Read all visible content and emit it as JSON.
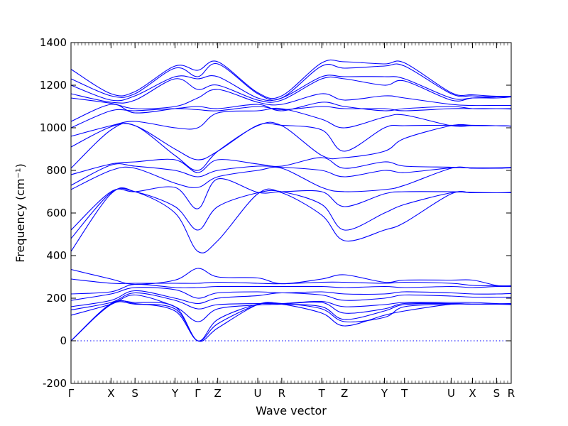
{
  "chart_data": {
    "type": "line",
    "title": "",
    "xlabel": "Wave vector",
    "ylabel": "Frequency (cm⁻¹)",
    "ylim": [
      -200,
      1400
    ],
    "yticks": [
      -200,
      0,
      200,
      400,
      600,
      800,
      1000,
      1200,
      1400
    ],
    "grid": false,
    "legend": "none",
    "zero_line": true,
    "line_color": "#0000ff",
    "xlim": [
      0,
      16.5
    ],
    "kpoints": [
      {
        "label": "Γ",
        "x": 0
      },
      {
        "label": "X",
        "x": 1.5
      },
      {
        "label": "S",
        "x": 2.4
      },
      {
        "label": "Y",
        "x": 3.9
      },
      {
        "label": "Γ",
        "x": 4.75
      },
      {
        "label": "Z",
        "x": 5.5
      },
      {
        "label": "U",
        "x": 7.0
      },
      {
        "label": "R",
        "x": 7.9
      },
      {
        "label": "T",
        "x": 9.4
      },
      {
        "label": "Z",
        "x": 10.25
      },
      {
        "label": "Y",
        "x": 11.75
      },
      {
        "label": "T",
        "x": 12.5
      },
      {
        "label": "U",
        "x": 14.25
      },
      {
        "label": "X",
        "x": 15.05
      },
      {
        "label": "S",
        "x": 15.95
      },
      {
        "label": "R",
        "x": 16.5
      }
    ],
    "series": [
      {
        "values": [
          0,
          170,
          172,
          150,
          0,
          60,
          170,
          172,
          130,
          70,
          120,
          140,
          172,
          172,
          172,
          170
        ]
      },
      {
        "values": [
          0,
          175,
          175,
          140,
          0,
          80,
          170,
          175,
          150,
          90,
          110,
          160,
          172,
          172,
          172,
          172
        ]
      },
      {
        "values": [
          0,
          172,
          180,
          160,
          0,
          100,
          172,
          172,
          160,
          100,
          140,
          170,
          175,
          172,
          172,
          172
        ]
      },
      {
        "values": [
          120,
          172,
          215,
          160,
          90,
          150,
          168,
          172,
          180,
          130,
          150,
          175,
          175,
          172,
          172,
          172
        ]
      },
      {
        "values": [
          145,
          180,
          225,
          190,
          150,
          170,
          175,
          175,
          185,
          160,
          170,
          180,
          180,
          180,
          175,
          175
        ]
      },
      {
        "values": [
          160,
          190,
          235,
          200,
          175,
          200,
          212,
          225,
          215,
          190,
          200,
          215,
          210,
          205,
          205,
          205
        ]
      },
      {
        "values": [
          190,
          220,
          250,
          240,
          200,
          225,
          230,
          225,
          230,
          220,
          220,
          230,
          225,
          220,
          220,
          222
        ]
      },
      {
        "values": [
          220,
          230,
          265,
          250,
          250,
          255,
          255,
          255,
          255,
          250,
          255,
          250,
          255,
          250,
          255,
          255
        ]
      },
      {
        "values": [
          290,
          270,
          270,
          270,
          270,
          275,
          270,
          268,
          275,
          275,
          270,
          275,
          270,
          260,
          258,
          258
        ]
      },
      {
        "values": [
          335,
          290,
          265,
          285,
          340,
          300,
          295,
          268,
          290,
          310,
          275,
          285,
          285,
          285,
          260,
          258
        ]
      },
      {
        "values": [
          420,
          690,
          700,
          600,
          420,
          470,
          690,
          695,
          590,
          470,
          520,
          555,
          690,
          695,
          695,
          695
        ]
      },
      {
        "values": [
          480,
          695,
          700,
          630,
          520,
          630,
          695,
          700,
          640,
          520,
          600,
          640,
          695,
          695,
          695,
          695
        ]
      },
      {
        "values": [
          520,
          700,
          700,
          720,
          620,
          760,
          697,
          700,
          700,
          630,
          690,
          700,
          700,
          697,
          695,
          697
        ]
      },
      {
        "values": [
          710,
          800,
          810,
          740,
          720,
          770,
          800,
          810,
          720,
          700,
          710,
          730,
          810,
          810,
          810,
          812
        ]
      },
      {
        "values": [
          730,
          825,
          820,
          800,
          770,
          800,
          820,
          815,
          800,
          770,
          800,
          790,
          812,
          812,
          812,
          812
        ]
      },
      {
        "values": [
          780,
          830,
          840,
          850,
          790,
          850,
          830,
          820,
          860,
          810,
          840,
          820,
          815,
          812,
          812,
          814
        ]
      },
      {
        "values": [
          810,
          990,
          1010,
          870,
          800,
          890,
          1010,
          1010,
          870,
          860,
          890,
          950,
          1010,
          1012,
          1010,
          1008
        ]
      },
      {
        "values": [
          910,
          1005,
          1010,
          900,
          850,
          890,
          1012,
          1012,
          990,
          890,
          1000,
          1010,
          1012,
          1010,
          1010,
          1008
        ]
      },
      {
        "values": [
          960,
          1010,
          1030,
          1000,
          1000,
          1070,
          1080,
          1090,
          1040,
          1000,
          1050,
          1060,
          1010,
          1010,
          1010,
          1008
        ]
      },
      {
        "values": [
          1000,
          1080,
          1080,
          1090,
          1085,
          1080,
          1100,
          1085,
          1100,
          1090,
          1090,
          1080,
          1090,
          1090,
          1090,
          1088
        ]
      },
      {
        "values": [
          1030,
          1110,
          1070,
          1090,
          1100,
          1090,
          1110,
          1080,
          1120,
          1100,
          1080,
          1090,
          1100,
          1090,
          1090,
          1090
        ]
      },
      {
        "values": [
          1140,
          1115,
          1090,
          1100,
          1140,
          1180,
          1120,
          1110,
          1160,
          1130,
          1150,
          1140,
          1110,
          1105,
          1105,
          1105
        ]
      },
      {
        "values": [
          1160,
          1120,
          1130,
          1230,
          1180,
          1200,
          1130,
          1130,
          1230,
          1230,
          1200,
          1220,
          1130,
          1140,
          1140,
          1145
        ]
      },
      {
        "values": [
          1200,
          1130,
          1150,
          1240,
          1230,
          1240,
          1140,
          1140,
          1240,
          1240,
          1240,
          1230,
          1140,
          1140,
          1145,
          1145
        ]
      },
      {
        "values": [
          1230,
          1150,
          1160,
          1280,
          1240,
          1300,
          1160,
          1140,
          1290,
          1280,
          1290,
          1290,
          1160,
          1150,
          1145,
          1148
        ]
      },
      {
        "values": [
          1275,
          1160,
          1170,
          1290,
          1270,
          1310,
          1165,
          1150,
          1305,
          1310,
          1300,
          1305,
          1165,
          1155,
          1148,
          1148
        ]
      }
    ]
  }
}
